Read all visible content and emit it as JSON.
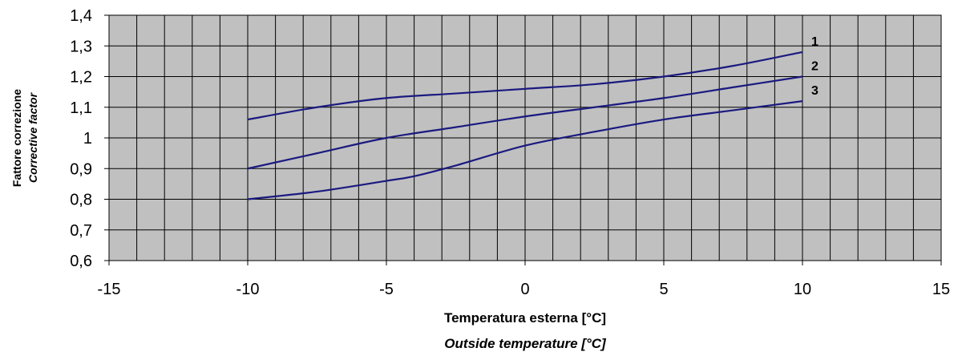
{
  "chart_data": {
    "type": "line",
    "xlabel": "Temperatura esterna [°C]",
    "xlabel_en": "Outside temperature [°C]",
    "ylabel": "Fattore correzione",
    "ylabel_en": "Corrective factor",
    "xlim": [
      -15,
      15
    ],
    "ylim": [
      0.6,
      1.4
    ],
    "x_ticks": [
      "-15",
      "-10",
      "-5",
      "0",
      "5",
      "10",
      "15"
    ],
    "y_ticks": [
      "0,6",
      "0,7",
      "0,8",
      "0,9",
      "1",
      "1,1",
      "1,2",
      "1,3",
      "1,4"
    ],
    "grid": true,
    "colors": {
      "line": "#1a1a80",
      "plot_bg": "#c0c0c0",
      "grid": "#000000"
    },
    "series": [
      {
        "name": "1",
        "x": [
          -10,
          -7.5,
          -5,
          -2.5,
          0,
          2.5,
          5,
          7.5,
          10
        ],
        "values": [
          1.06,
          1.1,
          1.13,
          1.145,
          1.16,
          1.175,
          1.2,
          1.235,
          1.28
        ]
      },
      {
        "name": "2",
        "x": [
          -10,
          -7.5,
          -5,
          -2.5,
          0,
          2.5,
          5,
          7.5,
          10
        ],
        "values": [
          0.9,
          0.95,
          1.0,
          1.035,
          1.07,
          1.1,
          1.13,
          1.165,
          1.2
        ]
      },
      {
        "name": "3",
        "x": [
          -10,
          -7.5,
          -5,
          -4,
          -2.5,
          0,
          2.5,
          5,
          7.5,
          10
        ],
        "values": [
          0.8,
          0.825,
          0.86,
          0.875,
          0.91,
          0.975,
          1.02,
          1.06,
          1.09,
          1.12
        ]
      }
    ]
  }
}
